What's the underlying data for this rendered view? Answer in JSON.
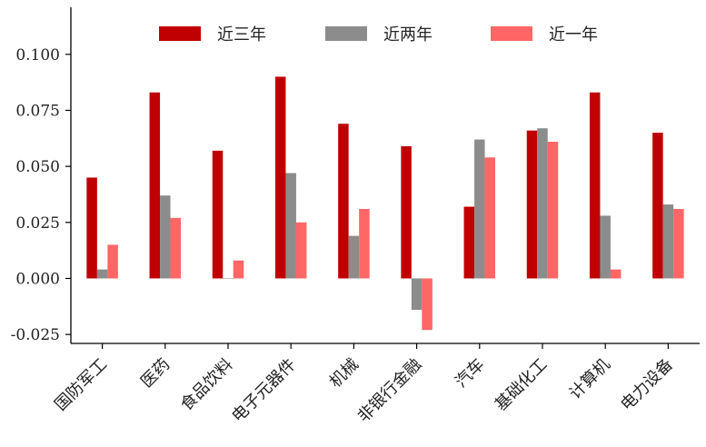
{
  "chart_data": {
    "type": "bar",
    "categories": [
      "国防军工",
      "医药",
      "食品饮料",
      "电子元器件",
      "机械",
      "非银行金融",
      "汽车",
      "基础化工",
      "计算机",
      "电力设备"
    ],
    "series": [
      {
        "name": "近三年",
        "color": "#c00000",
        "values": [
          0.045,
          0.083,
          0.057,
          0.09,
          0.069,
          0.059,
          0.032,
          0.066,
          0.083,
          0.065
        ]
      },
      {
        "name": "近两年",
        "color": "#8c8c8c",
        "values": [
          0.004,
          0.037,
          0.0,
          0.047,
          0.019,
          -0.014,
          0.062,
          0.067,
          0.028,
          0.033
        ]
      },
      {
        "name": "近一年",
        "color": "#ff6666",
        "values": [
          0.015,
          0.027,
          0.008,
          0.025,
          0.031,
          -0.023,
          0.054,
          0.061,
          0.004,
          0.031
        ]
      }
    ],
    "y_ticks": [
      "-0.025",
      "0.000",
      "0.025",
      "0.050",
      "0.075",
      "0.100"
    ],
    "ylim": [
      -0.029,
      0.121
    ],
    "legend_position": "top",
    "grid": false
  }
}
